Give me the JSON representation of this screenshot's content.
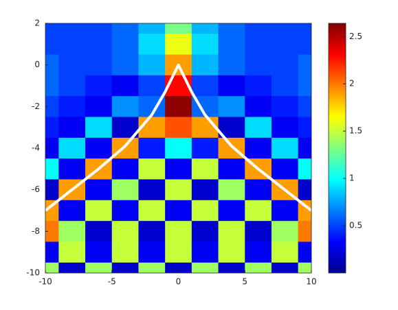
{
  "chart_data": {
    "type": "heatmap",
    "colormap": "jet",
    "x": [
      -10,
      -8,
      -6,
      -4,
      -2,
      0,
      2,
      4,
      6,
      8,
      10
    ],
    "y": [
      2,
      1,
      0,
      -1,
      -2,
      -3,
      -4,
      -5,
      -6,
      -7,
      -8,
      -9,
      -10
    ],
    "z": [
      [
        0.5,
        0.5,
        0.5,
        0.6,
        0.8,
        1.3,
        0.8,
        0.6,
        0.5,
        0.5,
        0.5
      ],
      [
        0.5,
        0.5,
        0.5,
        0.6,
        0.9,
        1.6,
        0.9,
        0.6,
        0.5,
        0.5,
        0.5
      ],
      [
        0.6,
        0.5,
        0.5,
        0.6,
        0.8,
        1.9,
        0.8,
        0.6,
        0.5,
        0.5,
        0.6
      ],
      [
        0.6,
        0.5,
        0.4,
        0.3,
        0.5,
        2.3,
        0.5,
        0.3,
        0.4,
        0.5,
        0.6
      ],
      [
        0.5,
        0.4,
        0.3,
        0.7,
        0.6,
        2.6,
        0.6,
        0.7,
        0.3,
        0.4,
        0.5
      ],
      [
        0.4,
        0.3,
        0.9,
        0.2,
        1.9,
        2.1,
        1.9,
        0.2,
        0.9,
        0.3,
        0.4
      ],
      [
        0.3,
        0.9,
        0.3,
        1.9,
        0.4,
        1.0,
        0.4,
        1.9,
        0.3,
        0.9,
        0.3
      ],
      [
        1.0,
        0.3,
        1.9,
        0.3,
        1.5,
        0.3,
        1.5,
        0.3,
        1.9,
        0.3,
        1.0
      ],
      [
        0.2,
        1.9,
        0.3,
        1.4,
        0.2,
        1.5,
        0.2,
        1.4,
        0.3,
        1.9,
        0.2
      ],
      [
        1.9,
        0.3,
        1.5,
        0.3,
        1.5,
        0.3,
        1.5,
        0.3,
        1.5,
        0.3,
        1.9
      ],
      [
        2.0,
        1.4,
        0.2,
        1.5,
        0.2,
        1.5,
        0.2,
        1.5,
        0.2,
        1.4,
        2.0
      ],
      [
        0.3,
        1.5,
        0.3,
        1.5,
        0.3,
        1.5,
        0.3,
        1.5,
        0.3,
        1.5,
        0.3
      ],
      [
        1.4,
        0.2,
        1.4,
        0.2,
        1.4,
        0.2,
        1.4,
        0.2,
        1.4,
        0.2,
        1.4
      ]
    ],
    "curve": {
      "color": "#ffffff",
      "x": [
        -10,
        -8,
        -6,
        -4,
        -2,
        -1,
        0,
        1,
        2,
        4,
        6,
        8,
        10
      ],
      "y": [
        -7,
        -6,
        -5,
        -3.9,
        -2.4,
        -1.3,
        0,
        -1.3,
        -2.4,
        -3.9,
        -5,
        -6,
        -7
      ]
    },
    "xlim": [
      -10,
      10
    ],
    "ylim": [
      -10,
      2
    ],
    "xticks": [
      -10,
      -5,
      0,
      5,
      10
    ],
    "yticks": [
      2,
      0,
      -2,
      -4,
      -6,
      -8,
      -10
    ],
    "clim": [
      0,
      2.64
    ],
    "cticks": [
      0.5,
      1,
      1.5,
      2,
      2.5
    ]
  }
}
